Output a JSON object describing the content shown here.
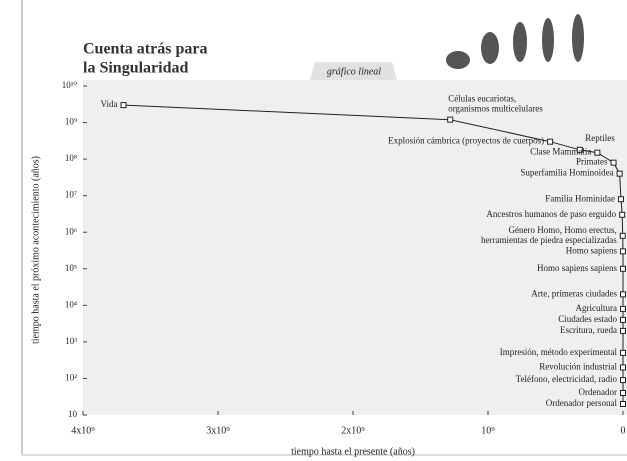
{
  "chart_data": {
    "type": "line",
    "title": [
      "Cuenta atrás para",
      "la Singularidad"
    ],
    "subtitle": "gráfico lineal",
    "x_label": "tiempo hasta el presente (años)",
    "y_label": "tiempo hasta el próximo acontecimiento (años)",
    "log_y": true,
    "color": "#222222",
    "xlim": [
      4000000000,
      0
    ],
    "xticks": [
      {
        "value": 4000000000,
        "label": "4x10⁹"
      },
      {
        "value": 3000000000,
        "label": "3x10⁹"
      },
      {
        "value": 2000000000,
        "label": "2x10⁹"
      },
      {
        "value": 1000000000,
        "label": "10⁹"
      },
      0
    ],
    "ylim": [
      10,
      10000000000
    ],
    "yticks": [
      10,
      {
        "value": 100,
        "label": "10²"
      },
      {
        "value": 1000,
        "label": "10³"
      },
      {
        "value": 10000,
        "label": "10⁴"
      },
      {
        "value": 100000,
        "label": "10⁵"
      },
      {
        "value": 1000000,
        "label": "10⁶"
      },
      {
        "value": 10000000,
        "label": "10⁷"
      },
      {
        "value": 100000000,
        "label": "10⁸"
      },
      {
        "value": 1000000000,
        "label": "10⁹"
      },
      {
        "value": 10000000000,
        "label": "10¹⁰"
      }
    ],
    "x": [
      3700000000,
      1280000000,
      540000000,
      320000000,
      190000000,
      70000000,
      25000000,
      15000000,
      6000000,
      2000000,
      300000,
      100000,
      20000,
      10000,
      5000,
      3000,
      500,
      200,
      100,
      50,
      20
    ],
    "values": [
      3000000000,
      1200000000,
      300000000,
      180000000,
      150000000,
      80000000,
      40000000,
      8000000,
      3000000,
      800000,
      300000,
      100000,
      20000,
      8000,
      4000,
      2000,
      500,
      200,
      90,
      40,
      20
    ],
    "point_labels": [
      [
        "Vida"
      ],
      [
        "Células eucariotas,",
        "organismos multicelulares"
      ],
      [
        "Explosión cámbrica (proyectos de cuerpos)"
      ],
      [
        "Reptiles"
      ],
      [
        "Clase Mammalia"
      ],
      [
        "Primates"
      ],
      [
        "Superfamilia Hominoidea"
      ],
      [
        "Familia Hominidae"
      ],
      [
        "Ancestros humanos de paso erguido"
      ],
      [
        "Género Homo, Homo erectus,",
        "herramientas de piedra especializadas"
      ],
      [
        "Homo sapiens"
      ],
      [
        "Homo sapiens sapiens"
      ],
      [
        "Arte, primeras ciudades"
      ],
      [
        "Agricultura"
      ],
      [
        "Ciudades estado"
      ],
      [
        "Escritura, rueda"
      ],
      [
        "Impresión, método experimental"
      ],
      [
        "Revolución industrial"
      ],
      [
        "Teléfono, electricidad, radio"
      ],
      [
        "Ordenador"
      ],
      [
        "Ordenador personal"
      ]
    ]
  }
}
